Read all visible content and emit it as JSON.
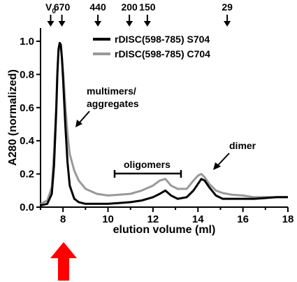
{
  "chart_data": {
    "type": "line",
    "title": "",
    "xlabel": "elution volume (ml)",
    "ylabel": "A280 (normalized)",
    "xlim": [
      7,
      18
    ],
    "ylim": [
      0,
      1.08
    ],
    "x_ticks": [
      8,
      10,
      12,
      14,
      16,
      18
    ],
    "y_ticks": [
      0.0,
      0.2,
      0.4,
      0.6,
      0.8,
      1.0
    ],
    "x_tick_labels": [
      "8",
      "10",
      "12",
      "14",
      "16",
      "18"
    ],
    "y_tick_labels": [
      "0.0",
      "0.2",
      "0.4",
      "0.6",
      "0.8",
      "1.0"
    ],
    "grid": false,
    "legend_position": "top-right",
    "series": [
      {
        "name": "rDISC(598-785) S704",
        "color": "#000000",
        "x": [
          7.0,
          7.3,
          7.5,
          7.6,
          7.7,
          7.75,
          7.8,
          7.85,
          7.9,
          7.95,
          8.0,
          8.1,
          8.2,
          8.3,
          8.5,
          8.7,
          9.0,
          9.5,
          10.0,
          10.5,
          11.0,
          11.5,
          12.0,
          12.3,
          12.55,
          12.8,
          13.1,
          13.5,
          13.8,
          14.0,
          14.15,
          14.3,
          14.5,
          14.8,
          15.1,
          15.5,
          16.0,
          16.5,
          17.0,
          17.5,
          18.0
        ],
        "y": [
          0.01,
          0.02,
          0.08,
          0.25,
          0.58,
          0.8,
          0.95,
          0.99,
          0.98,
          0.9,
          0.78,
          0.5,
          0.27,
          0.13,
          0.05,
          0.03,
          0.02,
          0.02,
          0.02,
          0.025,
          0.03,
          0.04,
          0.06,
          0.08,
          0.1,
          0.07,
          0.05,
          0.06,
          0.1,
          0.14,
          0.17,
          0.16,
          0.12,
          0.07,
          0.05,
          0.05,
          0.05,
          0.05,
          0.055,
          0.06,
          0.06
        ]
      },
      {
        "name": "rDISC(598-785) C704",
        "color": "#999999",
        "x": [
          7.0,
          7.3,
          7.5,
          7.6,
          7.7,
          7.75,
          7.8,
          7.85,
          7.9,
          7.95,
          8.0,
          8.1,
          8.2,
          8.3,
          8.5,
          8.7,
          9.0,
          9.5,
          10.0,
          10.5,
          11.0,
          11.5,
          12.0,
          12.3,
          12.55,
          12.8,
          13.1,
          13.5,
          13.8,
          14.0,
          14.15,
          14.3,
          14.5,
          14.8,
          15.1,
          15.5,
          16.0,
          16.5,
          17.0,
          17.5,
          18.0
        ],
        "y": [
          0.02,
          0.04,
          0.12,
          0.33,
          0.62,
          0.82,
          0.94,
          0.97,
          0.96,
          0.9,
          0.82,
          0.62,
          0.44,
          0.32,
          0.22,
          0.16,
          0.11,
          0.08,
          0.07,
          0.075,
          0.08,
          0.1,
          0.13,
          0.16,
          0.17,
          0.13,
          0.11,
          0.11,
          0.16,
          0.19,
          0.2,
          0.18,
          0.14,
          0.1,
          0.085,
          0.075,
          0.07,
          0.06,
          0.06,
          0.06,
          0.06
        ]
      }
    ],
    "mw_markers": [
      {
        "label_main": "V",
        "label_sub": "0",
        "x": 7.45
      },
      {
        "label_main": "670",
        "label_sub": "",
        "x": 7.95
      },
      {
        "label_main": "440",
        "label_sub": "",
        "x": 9.55
      },
      {
        "label_main": "200",
        "label_sub": "",
        "x": 10.95
      },
      {
        "label_main": "150",
        "label_sub": "",
        "x": 11.75
      },
      {
        "label_main": "29",
        "label_sub": "",
        "x": 15.3
      }
    ],
    "annotations": {
      "multimers_line1": "multimers/",
      "multimers_line2": "aggregates",
      "oligomers": "oligomers",
      "dimer": "dimer"
    },
    "highlight_arrow_color": "#ff0000"
  }
}
